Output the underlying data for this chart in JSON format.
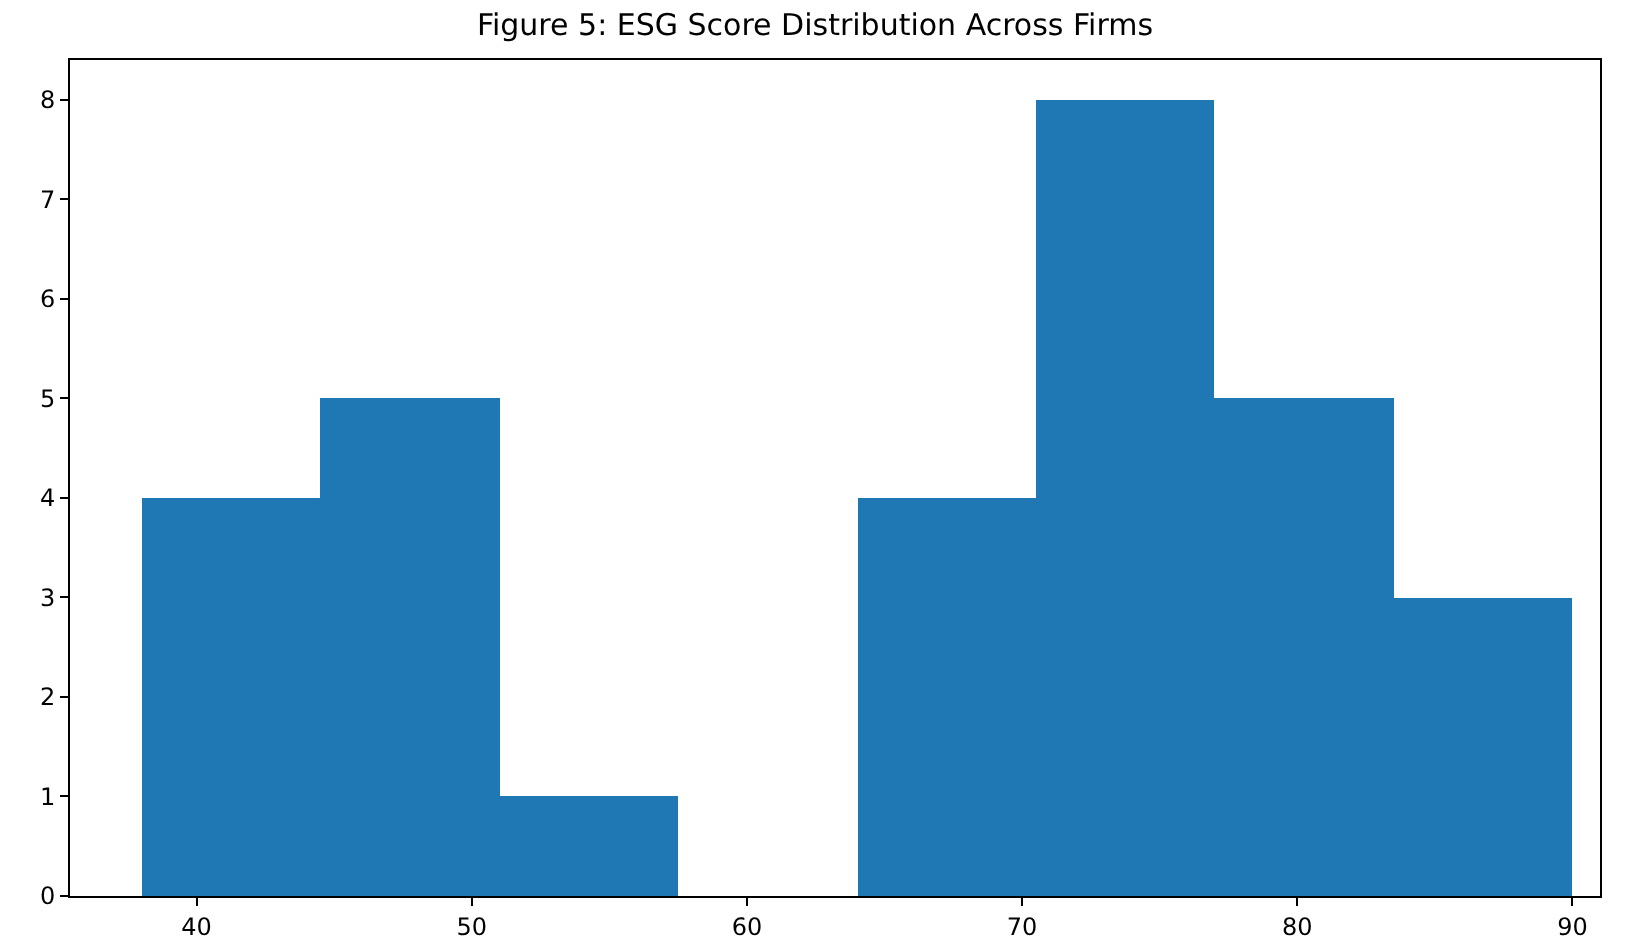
{
  "chart_data": {
    "type": "histogram",
    "title": "Figure 5: ESG Score Distribution Across Firms",
    "bins": [
      38,
      44.5,
      51,
      57.5,
      64,
      70.5,
      77,
      83.5,
      90
    ],
    "values": [
      4,
      5,
      1,
      0,
      4,
      8,
      5,
      3
    ],
    "color": "#1f77b4",
    "xlim": [
      35.4,
      91
    ],
    "xticks": [
      40,
      50,
      60,
      70,
      80,
      90
    ],
    "ylim": [
      0,
      8.4
    ],
    "yticks": [
      0,
      1,
      2,
      3,
      4,
      5,
      6,
      7,
      8
    ],
    "grid": false
  }
}
